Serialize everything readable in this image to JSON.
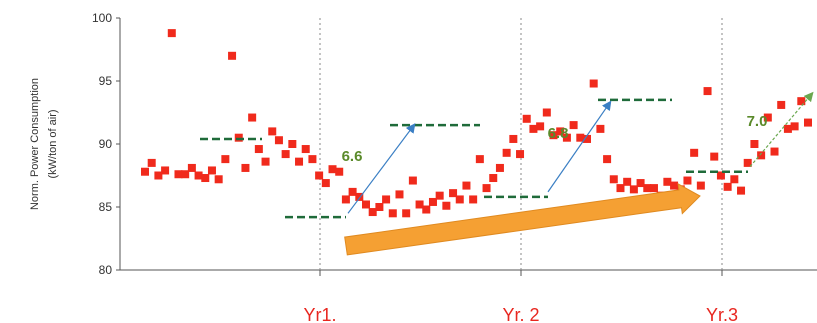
{
  "chart_data": {
    "type": "scatter",
    "ylabel_line1": "Norm. Power Consumption",
    "ylabel_line2": "(kW/ton of air)",
    "ylim": [
      80,
      100
    ],
    "yticks": [
      "80",
      "85",
      "90",
      "95",
      "100"
    ],
    "xlim": [
      0,
      100
    ],
    "grid": "vertical dotted lines at year boundaries",
    "year_boundaries": [
      {
        "x": 40,
        "label": "Yr1."
      },
      {
        "x": 60,
        "label": "Yr. 2"
      },
      {
        "x": 80,
        "label": "Yr.3"
      }
    ],
    "series": [
      {
        "color": "#f02a1c",
        "marker": "square",
        "points": [
          [
            2,
            87.8
          ],
          [
            3,
            88.5
          ],
          [
            4,
            87.5
          ],
          [
            5,
            87.9
          ],
          [
            6,
            98.8
          ],
          [
            7,
            87.6
          ],
          [
            8,
            87.6
          ],
          [
            9,
            88.1
          ],
          [
            10,
            87.5
          ],
          [
            11,
            87.3
          ],
          [
            12,
            87.9
          ],
          [
            13,
            87.2
          ],
          [
            14,
            88.8
          ],
          [
            15,
            97.0
          ],
          [
            16,
            90.5
          ],
          [
            17,
            88.1
          ],
          [
            18,
            92.1
          ],
          [
            19,
            89.6
          ],
          [
            20,
            88.6
          ],
          [
            21,
            91.0
          ],
          [
            22,
            90.3
          ],
          [
            23,
            89.2
          ],
          [
            24,
            90.0
          ],
          [
            25,
            88.6
          ],
          [
            26,
            89.6
          ],
          [
            27,
            88.8
          ],
          [
            28,
            87.5
          ],
          [
            29,
            86.9
          ],
          [
            30,
            88.0
          ],
          [
            31,
            87.8
          ],
          [
            32,
            85.6
          ],
          [
            33,
            86.2
          ],
          [
            34,
            85.8
          ],
          [
            35,
            85.2
          ],
          [
            36,
            84.6
          ],
          [
            37,
            85.0
          ],
          [
            38,
            85.6
          ],
          [
            39,
            84.5
          ],
          [
            40,
            86.0
          ],
          [
            41,
            84.5
          ],
          [
            42,
            87.1
          ],
          [
            43,
            85.2
          ],
          [
            44,
            84.8
          ],
          [
            45,
            85.4
          ],
          [
            46,
            85.9
          ],
          [
            47,
            85.1
          ],
          [
            48,
            86.1
          ],
          [
            49,
            85.6
          ],
          [
            50,
            86.7
          ],
          [
            51,
            85.6
          ],
          [
            52,
            88.8
          ],
          [
            53,
            86.5
          ],
          [
            54,
            87.3
          ],
          [
            55,
            88.1
          ],
          [
            56,
            89.3
          ],
          [
            57,
            90.4
          ],
          [
            58,
            89.2
          ],
          [
            59,
            92.0
          ],
          [
            60,
            91.2
          ],
          [
            61,
            91.4
          ],
          [
            62,
            92.5
          ],
          [
            63,
            90.7
          ],
          [
            64,
            91.0
          ],
          [
            65,
            90.5
          ],
          [
            66,
            91.5
          ],
          [
            67,
            90.5
          ],
          [
            68,
            90.4
          ],
          [
            69,
            94.8
          ],
          [
            70,
            91.2
          ],
          [
            71,
            88.8
          ],
          [
            72,
            87.2
          ],
          [
            73,
            86.5
          ],
          [
            74,
            87.0
          ],
          [
            75,
            86.4
          ],
          [
            76,
            86.9
          ],
          [
            77,
            86.5
          ],
          [
            78,
            86.5
          ],
          [
            79,
            85.9
          ],
          [
            80,
            87.0
          ],
          [
            81,
            86.7
          ],
          [
            82,
            86.4
          ],
          [
            83,
            87.1
          ],
          [
            84,
            89.3
          ],
          [
            85,
            86.7
          ],
          [
            86,
            94.2
          ],
          [
            87,
            89.0
          ],
          [
            88,
            87.5
          ],
          [
            89,
            86.6
          ],
          [
            90,
            87.2
          ],
          [
            91,
            86.3
          ],
          [
            92,
            88.5
          ],
          [
            93,
            90.0
          ],
          [
            94,
            89.1
          ],
          [
            95,
            92.1
          ],
          [
            96,
            89.4
          ],
          [
            97,
            93.1
          ],
          [
            98,
            91.2
          ],
          [
            99,
            91.4
          ],
          [
            100,
            93.4
          ],
          [
            101,
            91.7
          ]
        ]
      }
    ],
    "annotations": [
      {
        "text": "6.6",
        "color": "#5a8a2a"
      },
      {
        "text": "6.8",
        "color": "#5a8a2a"
      },
      {
        "text": "7.0",
        "color": "#5a8a2a"
      }
    ],
    "arrow_color": "#f5a033",
    "plateau_color": "#1f6b3a"
  }
}
